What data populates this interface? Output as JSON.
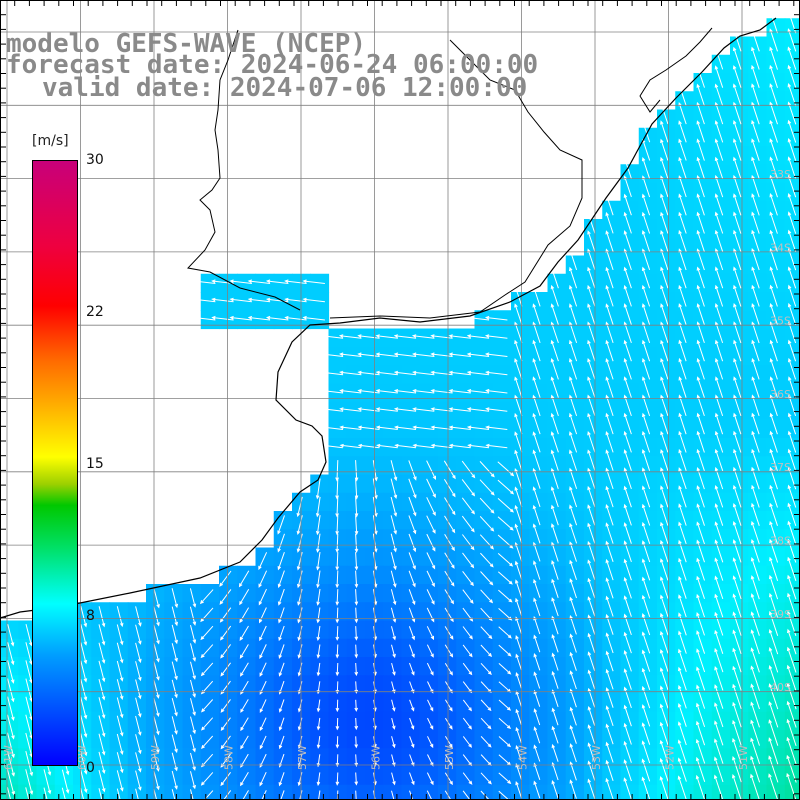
{
  "title": {
    "line1": "modelo GEFS-WAVE (NCEP)",
    "line2": "forecast date: 2024-06-24 06:00:00",
    "line3": "valid date: 2024-07-06 12:00:00"
  },
  "colorbar": {
    "unit": "[m/s]",
    "min": 0,
    "max": 30,
    "ticks": [
      "30",
      "22",
      "15",
      "8",
      "0"
    ],
    "tick_values": [
      30,
      22.5,
      15,
      8,
      0
    ],
    "colors": [
      "#0000ff",
      "#009cff",
      "#00ffff",
      "#00c800",
      "#ffff00",
      "#ff6a00",
      "#ff0000",
      "#c8007a"
    ]
  },
  "map": {
    "lat_labels": [
      "33S",
      "34S",
      "35S",
      "36S",
      "37S",
      "38S",
      "39S",
      "40S"
    ],
    "lon_labels": [
      "61W",
      "60W",
      "59W",
      "58W",
      "57W",
      "56W",
      "55W",
      "54W",
      "53W",
      "52W",
      "51W"
    ],
    "land_color": "#ffffff",
    "coast_color": "#000000",
    "grid_color": "#808080",
    "arrow_color": "#ffffff"
  }
}
